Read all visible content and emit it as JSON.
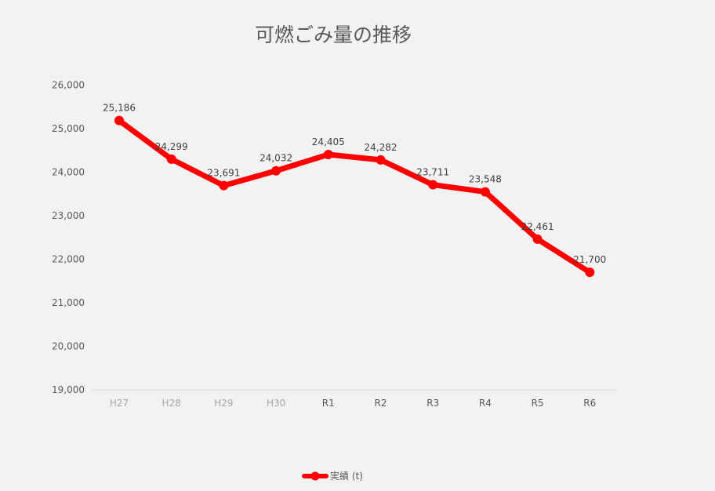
{
  "chart_data": {
    "type": "line",
    "title": "可燃ごみ量の推移",
    "xlabel": "",
    "ylabel": "",
    "categories": [
      "H27",
      "H28",
      "H29",
      "H30",
      "R1",
      "R2",
      "R3",
      "R4",
      "R5",
      "R6"
    ],
    "series": [
      {
        "name": "実績 (t)",
        "values": [
          25186,
          24299,
          23691,
          24032,
          24405,
          24282,
          23711,
          23548,
          22461,
          21700
        ],
        "data_labels": [
          "25,186",
          "24,299",
          "23,691",
          "24,032",
          "24,405",
          "24,282",
          "23,711",
          "23,548",
          "22,461",
          "21,700"
        ]
      }
    ],
    "ylim": [
      19000,
      26000
    ],
    "yticks": [
      19000,
      20000,
      21000,
      22000,
      23000,
      24000,
      25000,
      26000
    ],
    "ytick_labels": [
      "19,000",
      "20,000",
      "21,000",
      "22,000",
      "23,000",
      "24,000",
      "25,000",
      "26,000"
    ],
    "grid": false,
    "legend_position": "bottom-center",
    "colors": {
      "series": "#ff0000",
      "text": "#595959",
      "muted_tick": "#a6a6a6",
      "axis": "#d9d9d9",
      "background": "#f3f2f2"
    },
    "muted_categories": [
      "H27",
      "H28",
      "H29",
      "H30"
    ],
    "legend_icon": "line-with-circle-marker"
  }
}
